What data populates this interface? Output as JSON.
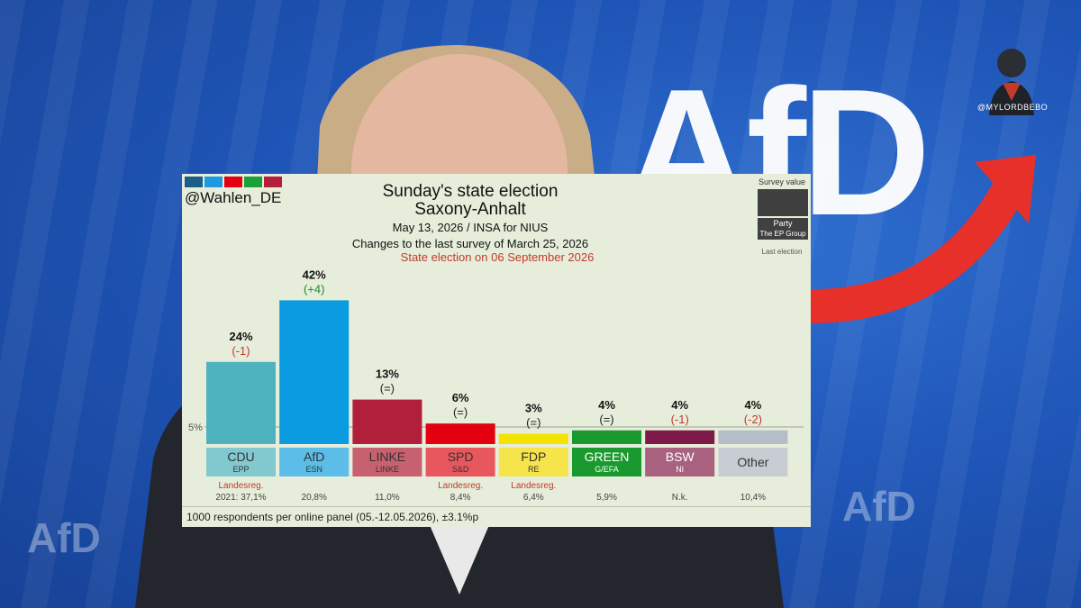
{
  "background": {
    "logo_text": "AfD",
    "small_logos": [
      "AfD",
      "AfD"
    ],
    "watermark": "@MYLORDBEBO"
  },
  "card": {
    "handle": "@Wahlen_DE",
    "swatch_colors": [
      "#1b5e89",
      "#1e9be0",
      "#e3000f",
      "#1aa03b",
      "#b51f3b"
    ],
    "legend": {
      "title": "Survey value",
      "party": "Party",
      "group": "The EP Group",
      "last": "Last election"
    },
    "footer": "1000 respondents per online panel (05.-12.05.2026), ±3.1%p"
  },
  "chart_data": {
    "type": "bar",
    "title": "Sunday's state election",
    "subtitle": "Saxony-Anhalt",
    "source": "May 13, 2026 / INSA for NIUS",
    "changes_note": "Changes to the last survey of March 25, 2026",
    "election_note": "State election on 06 September 2026",
    "threshold_label": "5%",
    "threshold": 5,
    "ylim": [
      0,
      50
    ],
    "categories": [
      "CDU",
      "AfD",
      "LINKE",
      "SPD",
      "FDP",
      "GREEN",
      "BSW",
      "Other"
    ],
    "groups": [
      "EPP",
      "ESN",
      "LINKE",
      "S&D",
      "RE",
      "G/EFA",
      "NI",
      ""
    ],
    "values": [
      24,
      42,
      13,
      6,
      3,
      4,
      4,
      4
    ],
    "value_labels": [
      "24%",
      "42%",
      "13%",
      "6%",
      "3%",
      "4%",
      "4%",
      "4%"
    ],
    "changes": [
      "(-1)",
      "(+4)",
      "(=)",
      "(=)",
      "(=)",
      "(=)",
      "(-1)",
      "(-2)"
    ],
    "change_colors": [
      "#c0392b",
      "#1e8a2e",
      "#222222",
      "#222222",
      "#222222",
      "#222222",
      "#c0392b",
      "#c0392b"
    ],
    "bar_colors": [
      "#4fb3bf",
      "#0a9be0",
      "#b21f3a",
      "#e3000f",
      "#f4e200",
      "#1a9a2e",
      "#7d1a47",
      "#b5bdc8"
    ],
    "label_colors": [
      "#82c8cf",
      "#5bbde8",
      "#c7606f",
      "#e8575d",
      "#f6e54a",
      "#1a9a2e",
      "#a8617f",
      "#c8cdd3"
    ],
    "label_text_colors": [
      "#333333",
      "#333333",
      "#333333",
      "#333333",
      "#333333",
      "#ffffff",
      "#ffffff",
      "#333333"
    ],
    "notes": [
      "Landesreg.",
      "",
      "",
      "Landesreg.",
      "Landesreg.",
      "",
      "",
      ""
    ],
    "last_election": [
      "2021: 37,1%",
      "20,8%",
      "11,0%",
      "8,4%",
      "6,4%",
      "5,9%",
      "N.k.",
      "10,4%"
    ]
  }
}
